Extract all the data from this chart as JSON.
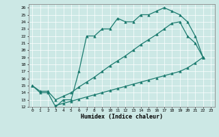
{
  "xlabel": "Humidex (Indice chaleur)",
  "bg_color": "#cce8e5",
  "line_color": "#1a7a6e",
  "xlim": [
    -0.5,
    23.5
  ],
  "ylim": [
    12,
    26.5
  ],
  "yticks": [
    12,
    13,
    14,
    15,
    16,
    17,
    18,
    19,
    20,
    21,
    22,
    23,
    24,
    25,
    26
  ],
  "xticks": [
    0,
    1,
    2,
    3,
    4,
    5,
    6,
    7,
    8,
    9,
    10,
    11,
    12,
    13,
    14,
    15,
    16,
    17,
    18,
    19,
    20,
    21,
    22,
    23
  ],
  "line1_x": [
    0,
    1,
    2,
    3,
    4,
    5,
    6,
    7,
    8,
    9,
    10,
    11,
    12,
    13,
    14,
    15,
    16,
    17,
    18,
    19,
    20,
    21,
    22
  ],
  "line1_y": [
    15,
    14,
    14,
    12,
    13,
    13,
    17,
    22,
    22,
    23,
    23,
    24.5,
    24,
    24,
    25,
    25,
    25.5,
    26,
    25.5,
    25,
    24,
    22,
    19
  ],
  "line2_x": [
    0,
    1,
    2,
    3,
    4,
    5,
    6,
    7,
    8,
    9,
    10,
    11,
    12,
    13,
    14,
    15,
    16,
    17,
    18,
    19,
    20,
    21,
    22
  ],
  "line2_y": [
    15,
    14.2,
    14.2,
    13.0,
    13.5,
    14.0,
    14.8,
    15.5,
    16.2,
    17.0,
    17.8,
    18.5,
    19.2,
    20.0,
    20.8,
    21.5,
    22.2,
    23,
    23.8,
    24,
    22,
    21,
    19
  ],
  "line3_x": [
    3,
    4,
    5,
    6,
    7,
    8,
    9,
    10,
    11,
    12,
    13,
    14,
    15,
    16,
    17,
    18,
    19,
    20,
    21,
    22
  ],
  "line3_y": [
    12.2,
    12.5,
    12.8,
    13.1,
    13.4,
    13.7,
    14.0,
    14.3,
    14.6,
    14.9,
    15.2,
    15.5,
    15.8,
    16.1,
    16.4,
    16.7,
    17.0,
    17.5,
    18.2,
    19
  ]
}
